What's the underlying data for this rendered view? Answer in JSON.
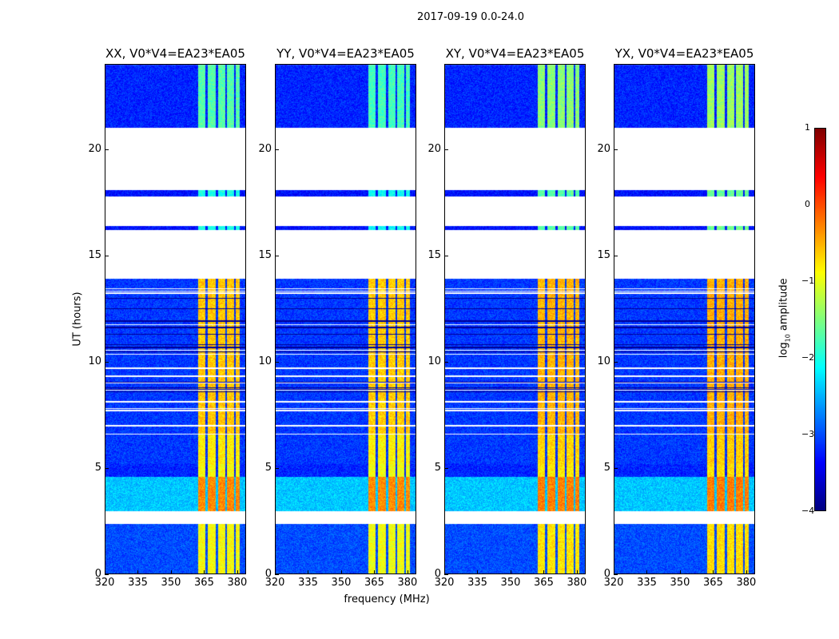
{
  "chart_data": {
    "type": "heatmap",
    "title": "2017-09-19 0.0-24.0",
    "xlabel": "frequency (MHz)",
    "ylabel": "UT (hours)",
    "xlim": [
      320,
      384
    ],
    "ylim": [
      0,
      24
    ],
    "xticks": [
      320,
      335,
      350,
      365,
      380
    ],
    "yticks": [
      0,
      5,
      10,
      15,
      20
    ],
    "colorbar": {
      "label": "log10 amplitude",
      "label_main": "log",
      "label_sub": "10",
      "label_rest": " amplitude",
      "range": [
        -4,
        1
      ],
      "ticks": [
        1,
        0,
        -1,
        -2,
        -3,
        -4
      ],
      "colormap": "jet"
    },
    "panels": [
      {
        "title": "XX, V0*V4=EA23*EA05",
        "bright": 1.0
      },
      {
        "title": "YY, V0*V4=EA23*EA05",
        "bright": 1.05
      },
      {
        "title": "XY, V0*V4=EA23*EA05",
        "bright": 0.85
      },
      {
        "title": "YX, V0*V4=EA23*EA05",
        "bright": 0.8
      }
    ],
    "rfi_bands_mhz": [
      [
        362,
        365.5
      ],
      [
        366.5,
        370
      ],
      [
        371,
        374.5
      ],
      [
        375,
        378.5
      ],
      [
        379,
        381
      ]
    ],
    "time_segments_hours": [
      {
        "from": 0,
        "to": 2.4,
        "background": -3.0,
        "rfi": -0.9
      },
      {
        "from": 2.4,
        "to": 3.0,
        "flagged": true
      },
      {
        "from": 3.0,
        "to": 4.6,
        "background": -2.4,
        "rfi": -0.3
      },
      {
        "from": 4.6,
        "to": 5.2,
        "background": -3.2,
        "rfi": -0.9
      },
      {
        "from": 5.2,
        "to": 6.6,
        "background": -3.1,
        "rfi": -0.8
      },
      {
        "from": 6.6,
        "to": 13.9,
        "background": -3.1,
        "rfi": -0.6
      },
      {
        "from": 13.9,
        "to": 16.2,
        "flagged": true
      },
      {
        "from": 16.2,
        "to": 16.4,
        "background": -3.3,
        "rfi": -2.0
      },
      {
        "from": 16.4,
        "to": 17.8,
        "flagged": true
      },
      {
        "from": 17.8,
        "to": 18.1,
        "background": -3.3,
        "rfi": -2.0
      },
      {
        "from": 18.1,
        "to": 21.0,
        "flagged": true
      },
      {
        "from": 21.0,
        "to": 24.0,
        "background": -3.2,
        "rfi": -1.7
      }
    ]
  }
}
